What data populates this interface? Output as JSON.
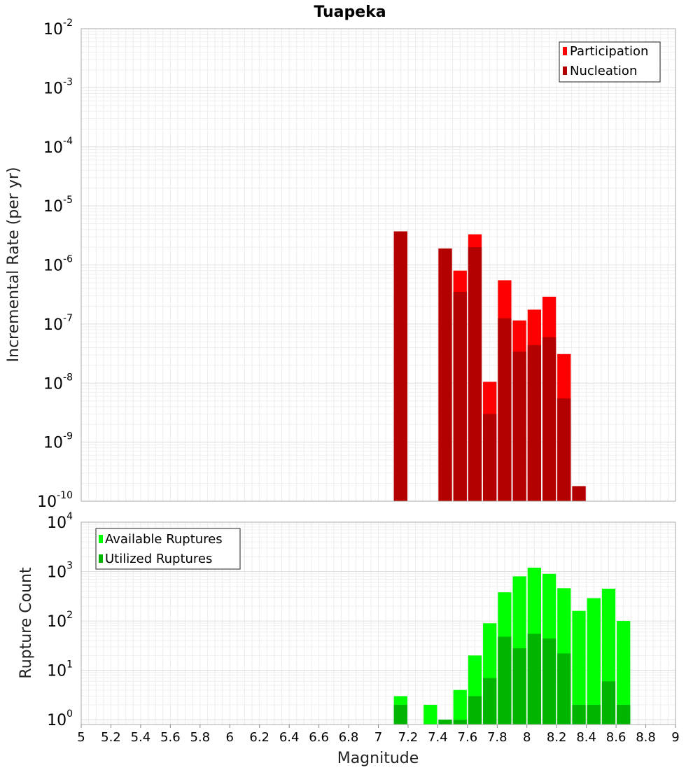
{
  "chart_data": [
    {
      "type": "bar",
      "title": "Tuapeka",
      "xlabel": "",
      "ylabel": "Incremental Rate (per yr)",
      "yscale": "log",
      "ylim": [
        1e-10,
        0.01
      ],
      "xlim": [
        5,
        9
      ],
      "bin_width": 0.1,
      "ytick_labels": [
        {
          "base": "10",
          "exp": "-2",
          "value": 0.01
        },
        {
          "base": "10",
          "exp": "-3",
          "value": 0.001
        },
        {
          "base": "10",
          "exp": "-4",
          "value": 0.0001
        },
        {
          "base": "10",
          "exp": "-5",
          "value": 1e-05
        },
        {
          "base": "10",
          "exp": "-6",
          "value": 1e-06
        },
        {
          "base": "10",
          "exp": "-7",
          "value": 1e-07
        },
        {
          "base": "10",
          "exp": "-8",
          "value": 1e-08
        },
        {
          "base": "10",
          "exp": "-9",
          "value": 1e-09
        },
        {
          "base": "10",
          "exp": "-10",
          "value": 1e-10
        }
      ],
      "legend_position": "top-right",
      "series": [
        {
          "name": "Participation",
          "color": "#ff0000",
          "x": [
            7.15,
            7.45,
            7.55,
            7.65,
            7.75,
            7.85,
            7.95,
            8.05,
            8.15,
            8.25,
            8.35
          ],
          "values": [
            3.7e-06,
            1.9e-06,
            8e-07,
            3.3e-06,
            1.05e-08,
            5.5e-07,
            1.15e-07,
            1.75e-07,
            2.9e-07,
            3.1e-08,
            1.8e-10
          ]
        },
        {
          "name": "Nucleation",
          "color": "#b30000",
          "x": [
            7.15,
            7.45,
            7.55,
            7.65,
            7.75,
            7.85,
            7.95,
            8.05,
            8.15,
            8.25,
            8.35
          ],
          "values": [
            3.7e-06,
            1.9e-06,
            3.5e-07,
            2e-06,
            3e-09,
            1.25e-07,
            3.4e-08,
            4.4e-08,
            6e-08,
            5.5e-09,
            1.8e-10
          ]
        }
      ]
    },
    {
      "type": "bar",
      "title": "",
      "xlabel": "Magnitude",
      "ylabel": "Rupture Count",
      "yscale": "log",
      "ylim": [
        0.8,
        10000
      ],
      "xlim": [
        5,
        9
      ],
      "bin_width": 0.1,
      "x_tick_labels": [
        "5",
        "5.2",
        "5.4",
        "5.6",
        "5.8",
        "6",
        "6.2",
        "6.4",
        "6.6",
        "6.8",
        "7",
        "7.2",
        "7.4",
        "7.6",
        "7.8",
        "8",
        "8.2",
        "8.4",
        "8.6",
        "8.8",
        "9"
      ],
      "ytick_labels": [
        {
          "base": "10",
          "exp": "4",
          "value": 10000
        },
        {
          "base": "10",
          "exp": "3",
          "value": 1000
        },
        {
          "base": "10",
          "exp": "2",
          "value": 100
        },
        {
          "base": "10",
          "exp": "1",
          "value": 10
        },
        {
          "base": "10",
          "exp": "0",
          "value": 1
        }
      ],
      "legend_position": "top-left",
      "series": [
        {
          "name": "Available Ruptures",
          "color": "#00ff00",
          "x": [
            7.15,
            7.35,
            7.45,
            7.55,
            7.65,
            7.75,
            7.85,
            7.95,
            8.05,
            8.15,
            8.25,
            8.35,
            8.45,
            8.55,
            8.65
          ],
          "values": [
            3,
            2,
            1,
            4,
            20,
            90,
            380,
            800,
            1200,
            900,
            460,
            160,
            290,
            450,
            100
          ]
        },
        {
          "name": "Utilized Ruptures",
          "color": "#00b400",
          "x": [
            7.15,
            7.35,
            7.45,
            7.55,
            7.65,
            7.75,
            7.85,
            7.95,
            8.05,
            8.15,
            8.25,
            8.35,
            8.45,
            8.55,
            8.65
          ],
          "values": [
            2,
            0,
            1,
            1,
            3,
            7,
            48,
            28,
            55,
            44,
            22,
            2,
            2,
            6,
            2
          ]
        }
      ]
    }
  ]
}
